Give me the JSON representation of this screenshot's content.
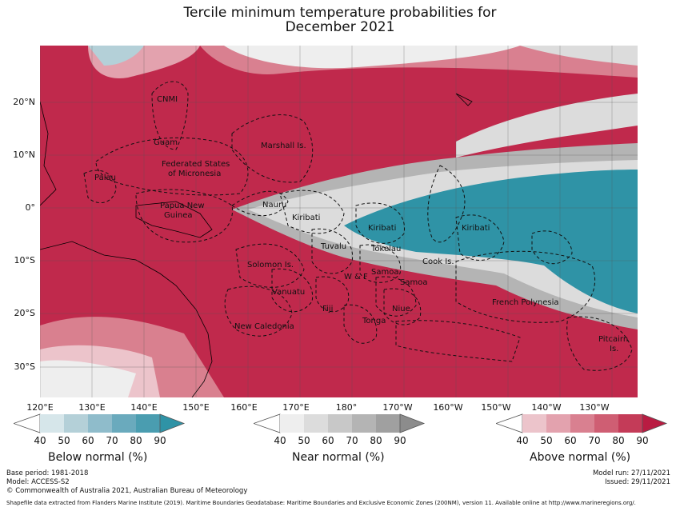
{
  "title": {
    "line1": "Tercile minimum temperature probabilities for",
    "line2": "December 2021"
  },
  "axes": {
    "lat_labels": [
      "20°N",
      "10°N",
      "0°",
      "10°S",
      "20°S",
      "30°S"
    ],
    "lon_labels": [
      "120°E",
      "130°E",
      "140°E",
      "150°E",
      "160°E",
      "170°E",
      "180°",
      "170°W",
      "160°W",
      "150°W",
      "140°W",
      "130°W"
    ]
  },
  "regions": {
    "cnmi": "CNMI",
    "guam": "Guam",
    "marshall": "Marshall Is.",
    "fsm_1": "Federated States",
    "fsm_2": "of Micronesia",
    "palau": "Palau",
    "png_1": "Papua New",
    "png_2": "Guinea",
    "nauru": "Nauru",
    "kiribati_w": "Kiribati",
    "kiribati_c": "Kiribati",
    "kiribati_e": "Kiribati",
    "tuvalu": "Tuvalu",
    "tokelau": "Tokelau",
    "samoa_am": "Samoa",
    "samoa": "Samoa",
    "wf": "W & F",
    "cook": "Cook Is.",
    "solomon": "Solomon Is.",
    "vanuatu": "Vanuatu",
    "fiji": "Fiji",
    "niue": "Niue",
    "tonga": "Tonga",
    "new_caledonia": "New Caledonia",
    "french_polynesia": "French Polynesia",
    "pitcairn_1": "Pitcairn",
    "pitcairn_2": "Is."
  },
  "legend": {
    "ticks": [
      "40",
      "50",
      "60",
      "70",
      "80",
      "90"
    ],
    "below": {
      "label": "Below normal (%)",
      "colors": [
        "#d6e6ea",
        "#b4d0d8",
        "#8fbccb",
        "#6aaabd",
        "#4a9db0",
        "#2f93a6"
      ]
    },
    "near": {
      "label": "Near normal (%)",
      "colors": [
        "#eeeeee",
        "#dcdcdc",
        "#c8c8c8",
        "#b4b4b4",
        "#a0a0a0",
        "#8c8c8c"
      ]
    },
    "above": {
      "label": "Above normal (%)",
      "colors": [
        "#ecc4cb",
        "#e3a2ae",
        "#d98090",
        "#cf5e73",
        "#c43b58",
        "#b91c42"
      ]
    }
  },
  "footer": {
    "base_period": "Base period: 1981-2018",
    "model": "Model: ACCESS-S2",
    "copyright": "© Commonwealth of Australia 2021, Australian Bureau of Meteorology",
    "model_run": "Model run: 27/11/2021",
    "issued": "Issued: 29/11/2021",
    "shapefile": "Shapefile data extracted from Flanders Marine Institute (2019). Maritime Boundaries Geodatabase: Maritime Boundaries and Exclusive Economic Zones (200NM), version 11. Available online at http://www.marineregions.org/."
  }
}
